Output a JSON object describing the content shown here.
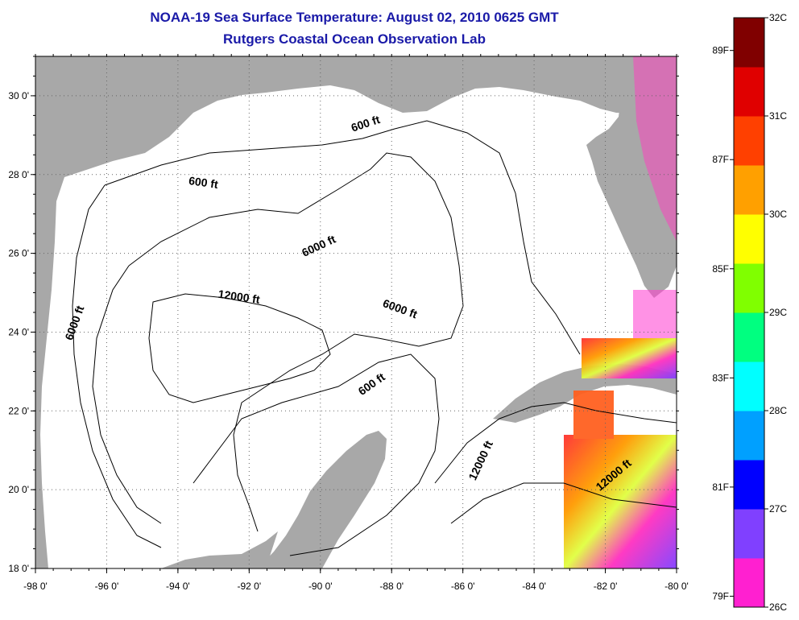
{
  "header": {
    "title": "NOAA-19 Sea Surface Temperature:  August 02, 2010 0625 GMT",
    "subtitle": "Rutgers Coastal Ocean Observation Lab"
  },
  "map": {
    "lon_range": [
      -98,
      -80
    ],
    "lat_range": [
      18,
      31
    ],
    "lon_ticks": [
      "-98 0'",
      "-96 0'",
      "-94 0'",
      "-92 0'",
      "-90 0'",
      "-88 0'",
      "-86 0'",
      "-84 0'",
      "-82 0'",
      "-80 0'"
    ],
    "lat_ticks": [
      "18 0'",
      "20 0'",
      "22 0'",
      "24 0'",
      "26 0'",
      "28 0'",
      "30 0'"
    ],
    "contour_labels": [
      {
        "text": "600 ft",
        "lon": -88.7,
        "lat": 29.2
      },
      {
        "text": "600 ft",
        "lon": -93.3,
        "lat": 27.7
      },
      {
        "text": "6000 ft",
        "lon": -90.0,
        "lat": 26.1
      },
      {
        "text": "12000 ft",
        "lon": -92.3,
        "lat": 24.8
      },
      {
        "text": "6000 ft",
        "lon": -96.8,
        "lat": 24.2
      },
      {
        "text": "6000 ft",
        "lon": -87.8,
        "lat": 24.5
      },
      {
        "text": "600 ft",
        "lon": -88.5,
        "lat": 22.6
      },
      {
        "text": "12000 ft",
        "lon": -85.4,
        "lat": 20.7
      },
      {
        "text": "12000 ft",
        "lon": -81.7,
        "lat": 20.3
      }
    ],
    "colors": {
      "land": "#a8a8a8",
      "water": "#ffffff",
      "contour": "#000000",
      "grid": "#555555"
    }
  },
  "colorbar": {
    "celsius_labels": [
      "32C",
      "31C",
      "30C",
      "29C",
      "28C",
      "27C",
      "26C"
    ],
    "fahrenheit_labels": [
      "89F",
      "87F",
      "85F",
      "83F",
      "81F",
      "79F"
    ],
    "celsius_range": [
      26,
      32
    ],
    "colors": [
      "#ff20d0",
      "#8040ff",
      "#0000ff",
      "#00a0ff",
      "#00ffff",
      "#00ff80",
      "#80ff00",
      "#ffff00",
      "#ffa000",
      "#ff4000",
      "#e00000",
      "#800000"
    ]
  }
}
